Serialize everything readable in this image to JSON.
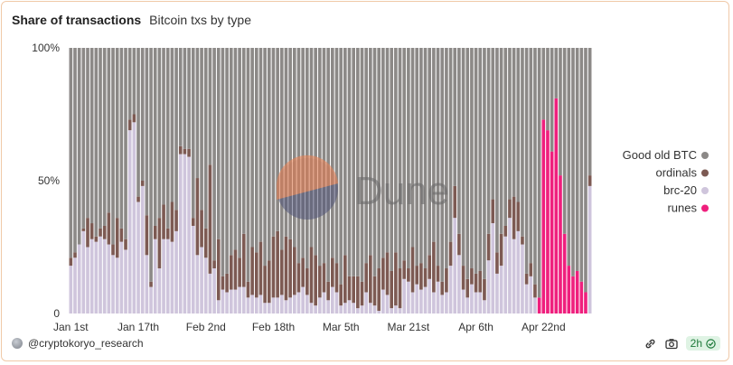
{
  "header": {
    "title": "Share of transactions",
    "subtitle": "Bitcoin txs by type"
  },
  "footer": {
    "author": "@cryptokoryo_research",
    "refresh": "2h"
  },
  "watermark": {
    "text": "Dune"
  },
  "colors": {
    "good_old_btc": "#8c8987",
    "ordinals": "#7d5a53",
    "brc20": "#cfc5dc",
    "runes": "#ef1f7d"
  },
  "chart_data": {
    "type": "bar",
    "stacked": true,
    "normalized": true,
    "y_tick_labels": [
      "0",
      "50%",
      "100%"
    ],
    "y_ticks": [
      0,
      50,
      100
    ],
    "ylim": [
      0,
      100
    ],
    "x_tick_labels": [
      "Jan 1st",
      "Jan 17th",
      "Feb 2nd",
      "Feb 18th",
      "Mar 5th",
      "Mar 21st",
      "Apr 6th",
      "Apr 22nd"
    ],
    "x_tick_index": [
      0,
      16,
      32,
      48,
      64,
      80,
      96,
      112
    ],
    "legend_position": "right",
    "series": [
      {
        "name": "brc-20",
        "key": "brc20",
        "values": [
          18,
          21,
          26,
          31,
          25,
          28,
          27,
          29,
          28,
          26,
          22,
          21,
          27,
          24,
          69,
          72,
          42,
          48,
          22,
          10,
          28,
          17,
          28,
          28,
          27,
          31,
          60,
          60,
          59,
          33,
          22,
          25,
          21,
          15,
          17,
          5,
          9,
          8,
          9,
          9,
          10,
          10,
          6,
          7,
          6,
          7,
          4,
          4,
          6,
          6,
          7,
          5,
          6,
          7,
          8,
          10,
          7,
          4,
          3,
          6,
          8,
          5,
          10,
          8,
          3,
          4,
          5,
          4,
          2,
          3,
          8,
          4,
          3,
          1,
          9,
          7,
          2,
          3,
          2,
          13,
          12,
          8,
          11,
          9,
          10,
          13,
          8,
          12,
          7,
          8,
          18,
          36,
          22,
          9,
          6,
          11,
          8,
          8,
          5,
          20,
          34,
          15,
          18,
          29,
          36,
          28,
          31,
          26,
          11,
          14,
          6,
          0,
          0,
          0,
          0,
          0,
          0,
          0,
          0,
          0,
          0,
          0,
          0,
          48
        ]
      },
      {
        "name": "ordinals",
        "key": "ordinals",
        "values": [
          3,
          2,
          0,
          1,
          11,
          6,
          2,
          3,
          5,
          12,
          4,
          15,
          5,
          4,
          4,
          3,
          2,
          2,
          15,
          2,
          5,
          19,
          13,
          4,
          15,
          8,
          3,
          2,
          3,
          3,
          29,
          14,
          11,
          41,
          3,
          23,
          5,
          7,
          13,
          15,
          11,
          20,
          6,
          18,
          17,
          20,
          14,
          16,
          23,
          25,
          17,
          24,
          22,
          18,
          11,
          11,
          10,
          21,
          19,
          12,
          11,
          7,
          11,
          11,
          8,
          18,
          9,
          10,
          12,
          9,
          11,
          18,
          11,
          16,
          12,
          16,
          14,
          20,
          15,
          7,
          5,
          17,
          7,
          10,
          7,
          9,
          19,
          6,
          5,
          9,
          9,
          12,
          8,
          9,
          7,
          6,
          7,
          8,
          8,
          10,
          9,
          8,
          12,
          4,
          7,
          16,
          11,
          3,
          4,
          5,
          5,
          0,
          0,
          0,
          0,
          0,
          0,
          0,
          0,
          0,
          0,
          0,
          0,
          4
        ]
      },
      {
        "name": "runes",
        "key": "runes",
        "values": [
          0,
          0,
          0,
          0,
          0,
          0,
          0,
          0,
          0,
          0,
          0,
          0,
          0,
          0,
          0,
          0,
          0,
          0,
          0,
          0,
          0,
          0,
          0,
          0,
          0,
          0,
          0,
          0,
          0,
          0,
          0,
          0,
          0,
          0,
          0,
          0,
          0,
          0,
          0,
          0,
          0,
          0,
          0,
          0,
          0,
          0,
          0,
          0,
          0,
          0,
          0,
          0,
          0,
          0,
          0,
          0,
          0,
          0,
          0,
          0,
          0,
          0,
          0,
          0,
          0,
          0,
          0,
          0,
          0,
          0,
          0,
          0,
          0,
          0,
          0,
          0,
          0,
          0,
          0,
          0,
          0,
          0,
          0,
          0,
          0,
          0,
          0,
          0,
          0,
          0,
          0,
          0,
          0,
          0,
          0,
          0,
          0,
          0,
          0,
          0,
          0,
          0,
          0,
          0,
          0,
          0,
          0,
          0,
          0,
          0,
          0,
          6,
          73,
          69,
          61,
          81,
          52,
          30,
          18,
          14,
          16,
          12,
          8,
          0
        ]
      },
      {
        "name": "Good old BTC",
        "key": "good_old_btc",
        "values": [
          79,
          77,
          74,
          68,
          64,
          66,
          71,
          68,
          67,
          62,
          74,
          64,
          68,
          72,
          27,
          25,
          56,
          50,
          63,
          88,
          67,
          64,
          59,
          68,
          58,
          61,
          37,
          38,
          38,
          64,
          49,
          61,
          68,
          44,
          80,
          72,
          86,
          85,
          78,
          76,
          79,
          70,
          88,
          75,
          77,
          73,
          82,
          80,
          71,
          69,
          76,
          71,
          72,
          75,
          81,
          79,
          83,
          75,
          78,
          82,
          81,
          88,
          79,
          81,
          89,
          78,
          86,
          86,
          86,
          88,
          81,
          78,
          86,
          83,
          79,
          77,
          84,
          77,
          83,
          80,
          83,
          75,
          82,
          81,
          83,
          78,
          73,
          82,
          88,
          83,
          73,
          52,
          70,
          82,
          87,
          83,
          85,
          84,
          87,
          70,
          57,
          77,
          70,
          67,
          57,
          56,
          58,
          71,
          85,
          81,
          89,
          94,
          27,
          31,
          39,
          19,
          48,
          70,
          82,
          86,
          84,
          88,
          92,
          48
        ]
      }
    ]
  }
}
